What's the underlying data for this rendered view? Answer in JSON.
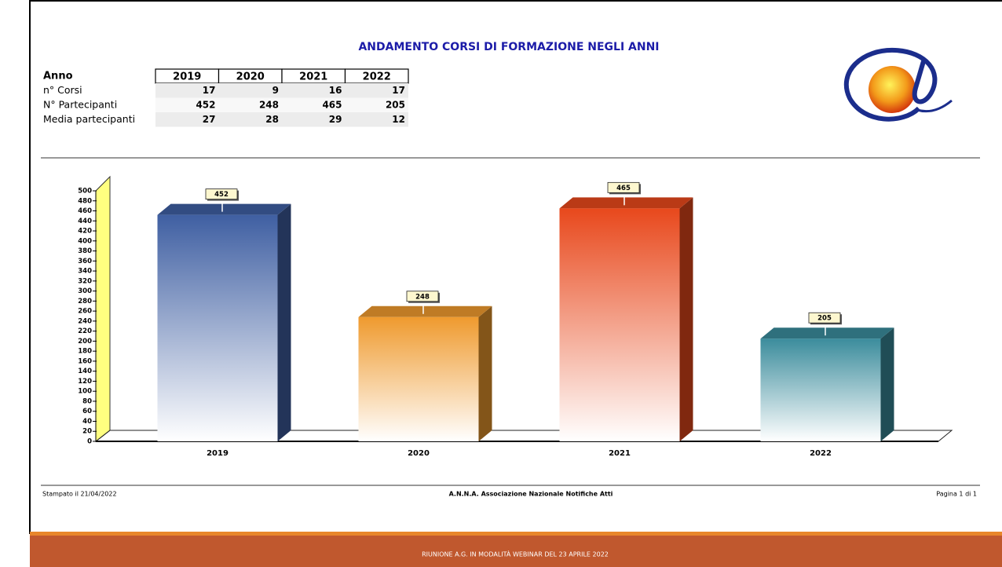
{
  "header": {
    "title": "ANDAMENTO CORSI DI FORMAZIONE NEGLI ANNI"
  },
  "table": {
    "header": [
      "Anno",
      "2019",
      "2020",
      "2021",
      "2022"
    ],
    "rows": [
      [
        "n° Corsi",
        17,
        9,
        16,
        17
      ],
      [
        "N° Partecipanti",
        452,
        248,
        465,
        205
      ],
      [
        "Media partecipanti",
        27,
        28,
        29,
        12
      ]
    ]
  },
  "chart_data": {
    "type": "bar",
    "categories": [
      "2019",
      "2020",
      "2021",
      "2022"
    ],
    "values": [
      452,
      248,
      465,
      205
    ],
    "colors": [
      "#3f5fa2",
      "#ef9a2e",
      "#e8481c",
      "#3b8c9c"
    ],
    "ylim": [
      0,
      500
    ],
    "yticks": [
      0,
      20,
      40,
      60,
      80,
      100,
      120,
      140,
      160,
      180,
      200,
      220,
      240,
      260,
      280,
      300,
      320,
      340,
      360,
      380,
      400,
      420,
      440,
      460,
      480,
      500
    ]
  },
  "footer": {
    "left": "Stampato il 21/04/2022",
    "center": "A.N.N.A. Associazione Nazionale Notifiche Atti",
    "right": "Pagina 1 di 1",
    "banner": "RIUNIONE A.G. IN MODALITÀ WEBINAR DEL 23 APRILE 2022"
  }
}
